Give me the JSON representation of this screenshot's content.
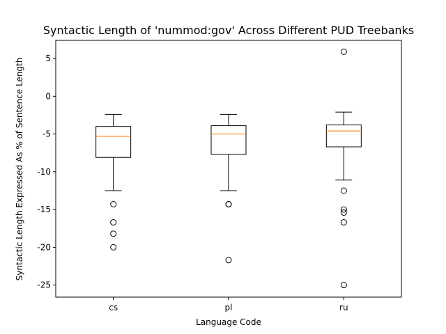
{
  "chart_data": {
    "type": "box",
    "title": "Syntactic Length of 'nummod:gov' Across Different PUD Treebanks",
    "xlabel": "Language Code",
    "ylabel": "Syntactic Length Expressed As % of Sentence Length",
    "ylim": [
      -26.6,
      7.4
    ],
    "yticks": [
      5,
      0,
      -5,
      -10,
      -15,
      -20,
      -25
    ],
    "grid": false,
    "categories": [
      "cs",
      "pl",
      "ru"
    ],
    "boxes": [
      {
        "category": "cs",
        "whisker_high": -2.4,
        "q3": -4.0,
        "median": -5.3,
        "q1": -8.1,
        "whisker_low": -12.5,
        "outliers": [
          -14.3,
          -16.7,
          -18.2,
          -20.0
        ]
      },
      {
        "category": "pl",
        "whisker_high": -2.4,
        "q3": -3.9,
        "median": -5.0,
        "q1": -7.7,
        "whisker_low": -12.5,
        "outliers": [
          -14.3,
          -14.3,
          -21.7
        ]
      },
      {
        "category": "ru",
        "whisker_high": -2.1,
        "q3": -3.8,
        "median": -4.6,
        "q1": -6.7,
        "whisker_low": -11.1,
        "outliers": [
          5.9,
          -12.5,
          -15.0,
          -15.4,
          -16.7,
          -25.0
        ]
      }
    ],
    "colors": {
      "box": "#000000",
      "median": "#ff7f0e",
      "outlier": "#000000"
    }
  }
}
